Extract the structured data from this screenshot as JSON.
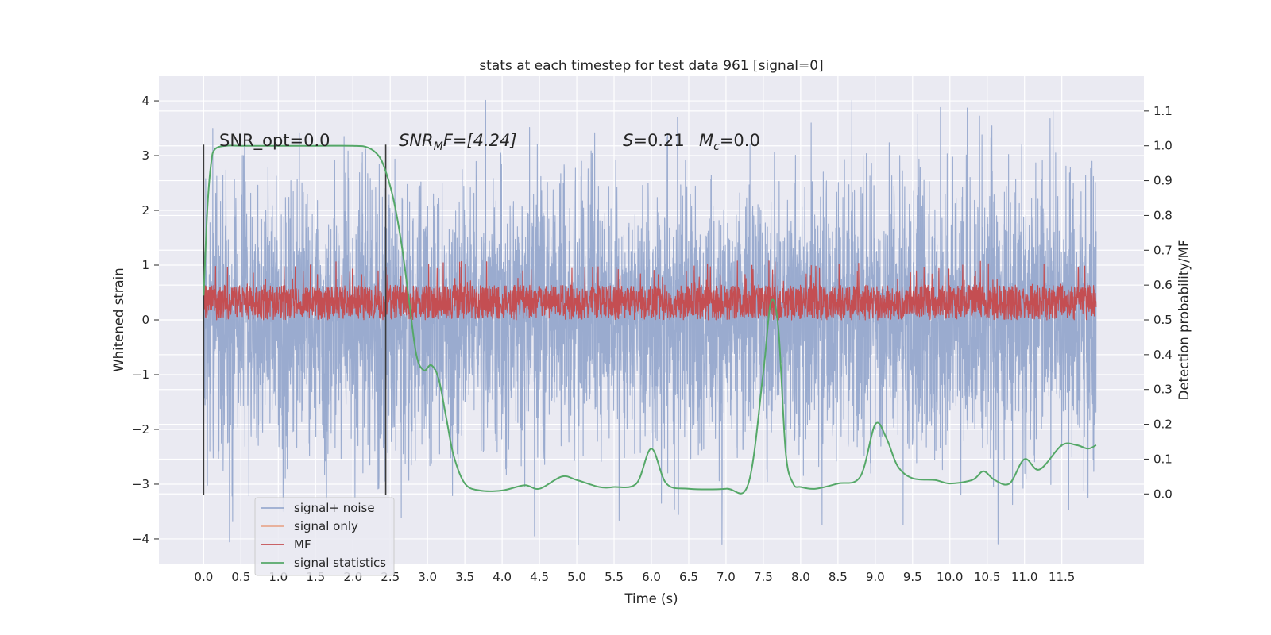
{
  "chart_data": {
    "type": "line",
    "title": "stats at each timestep for test data 961 [signal=0]",
    "xlabel": "Time (s)",
    "ylabel_left": "Whitened strain",
    "ylabel_right": "Detection probability/MF",
    "xlim": [
      -0.6,
      12.6
    ],
    "ylim_left": [
      -4.45,
      4.45
    ],
    "ylim_right": [
      -0.2,
      1.2
    ],
    "x_ticks": [
      0.0,
      0.5,
      1.0,
      1.5,
      2.0,
      2.5,
      3.0,
      3.5,
      4.0,
      4.5,
      5.0,
      5.5,
      6.0,
      6.5,
      7.0,
      7.5,
      8.0,
      8.5,
      9.0,
      9.5,
      10.0,
      10.5,
      11.0,
      11.5
    ],
    "x_tick_labels": [
      "0.0",
      "0.5",
      "1.0",
      "1.5",
      "2.0",
      "2.5",
      "3.0",
      "3.5",
      "4.0",
      "4.5",
      "5.0",
      "5.5",
      "6.0",
      "6.5",
      "7.0",
      "7.5",
      "8.0",
      "8.5",
      "9.0",
      "9.5",
      "10.0",
      "10.5",
      "11.0",
      "11.5"
    ],
    "y_left_ticks": [
      -4,
      -3,
      -2,
      -1,
      0,
      1,
      2,
      3,
      4
    ],
    "y_left_tick_labels": [
      "−4",
      "−3",
      "−2",
      "−1",
      "0",
      "1",
      "2",
      "3",
      "4"
    ],
    "y_right_ticks": [
      0.0,
      0.1,
      0.2,
      0.3,
      0.4,
      0.5,
      0.6,
      0.7,
      0.8,
      0.9,
      1.0,
      1.1
    ],
    "y_right_tick_labels": [
      "0.0",
      "0.1",
      "0.2",
      "0.3",
      "0.4",
      "0.5",
      "0.6",
      "0.7",
      "0.8",
      "0.9",
      "1.0",
      "1.1"
    ],
    "grid": true,
    "legend_position": "lower-left",
    "annotations": {
      "snr_opt": "SNR_opt=0.0",
      "snr_mf_main": "SNR",
      "snr_mf_sub": "M",
      "snr_mf_rest": "F=[4.24]",
      "s_main": "S",
      "s_rest": "=0.21",
      "mc_main": "M",
      "mc_sub": "c",
      "mc_rest": "=0.0"
    },
    "vertical_markers": [
      0.0,
      2.44
    ],
    "marker_yrange": [
      -3.2,
      3.2
    ],
    "series": [
      {
        "name": "signal+ noise",
        "color": "#9AABCF",
        "axis": "left",
        "style": "noise",
        "x_range": [
          0.0,
          11.96
        ],
        "typical_range": [
          -1.9,
          1.9
        ],
        "extreme_range": [
          -4.1,
          4.1
        ]
      },
      {
        "name": "signal only",
        "color": "#E8A98F",
        "axis": "left",
        "style": "flat",
        "values": []
      },
      {
        "name": "MF",
        "color": "#C44E52",
        "axis": "right",
        "style": "noise",
        "x_range": [
          0.0,
          11.96
        ],
        "typical_range": [
          0.505,
          0.6
        ],
        "extreme_range": [
          0.5,
          0.67
        ]
      },
      {
        "name": "signal statistics",
        "color": "#55A868",
        "axis": "right",
        "style": "line",
        "x": [
          0.0,
          0.05,
          0.1,
          0.15,
          0.3,
          0.5,
          1.0,
          1.5,
          2.0,
          2.2,
          2.35,
          2.45,
          2.55,
          2.65,
          2.75,
          2.85,
          2.95,
          3.05,
          3.15,
          3.25,
          3.35,
          3.5,
          3.7,
          4.0,
          4.3,
          4.5,
          4.8,
          5.0,
          5.3,
          5.5,
          5.8,
          6.0,
          6.2,
          6.5,
          7.0,
          7.3,
          7.5,
          7.6,
          7.7,
          7.8,
          7.9,
          8.0,
          8.2,
          8.5,
          8.8,
          9.0,
          9.15,
          9.3,
          9.5,
          9.8,
          10.0,
          10.3,
          10.45,
          10.6,
          10.8,
          11.0,
          11.2,
          11.5,
          11.7,
          11.85,
          11.96
        ],
        "values": [
          0.57,
          0.82,
          0.95,
          0.99,
          1.0,
          1.0,
          1.0,
          1.0,
          1.0,
          0.995,
          0.97,
          0.92,
          0.84,
          0.72,
          0.56,
          0.4,
          0.355,
          0.37,
          0.33,
          0.22,
          0.11,
          0.03,
          0.01,
          0.01,
          0.025,
          0.015,
          0.05,
          0.04,
          0.02,
          0.02,
          0.03,
          0.13,
          0.03,
          0.015,
          0.015,
          0.03,
          0.35,
          0.55,
          0.48,
          0.12,
          0.03,
          0.02,
          0.015,
          0.03,
          0.05,
          0.2,
          0.16,
          0.08,
          0.045,
          0.04,
          0.03,
          0.04,
          0.065,
          0.04,
          0.03,
          0.1,
          0.07,
          0.14,
          0.14,
          0.13,
          0.14
        ]
      }
    ]
  }
}
